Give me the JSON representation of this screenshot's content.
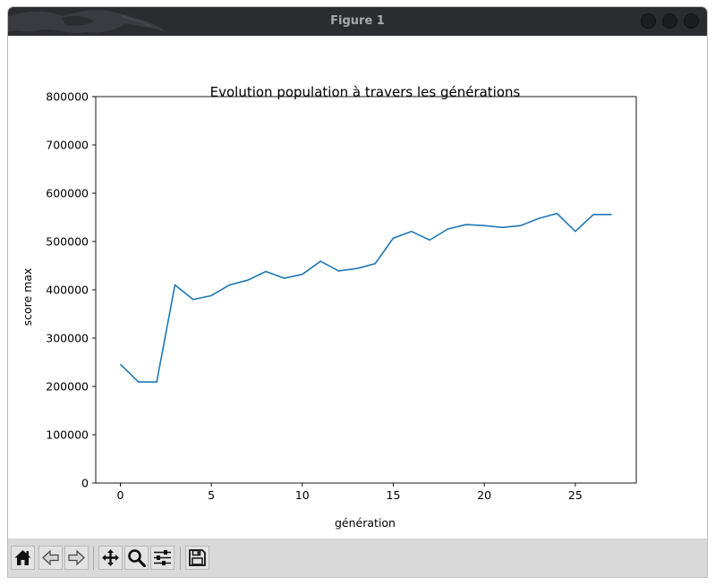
{
  "window": {
    "title": "Figure 1"
  },
  "toolbar": {
    "buttons": [
      {
        "name": "home-button",
        "icon": "home-icon"
      },
      {
        "name": "back-button",
        "icon": "back-arrow-icon"
      },
      {
        "name": "forward-button",
        "icon": "forward-arrow-icon"
      },
      {
        "name": "pan-button",
        "icon": "move-icon"
      },
      {
        "name": "zoom-button",
        "icon": "zoom-icon"
      },
      {
        "name": "configure-subplots-button",
        "icon": "sliders-icon"
      },
      {
        "name": "save-button",
        "icon": "floppy-disk-icon"
      }
    ]
  },
  "chart_data": {
    "type": "line",
    "title": "Evolution population à travers les générations",
    "xlabel": "génération",
    "ylabel": "score max",
    "xlim": [
      -1.35,
      28.35
    ],
    "ylim": [
      0,
      800000
    ],
    "xticks": [
      0,
      5,
      10,
      15,
      20,
      25
    ],
    "yticks": [
      0,
      100000,
      200000,
      300000,
      400000,
      500000,
      600000,
      700000,
      800000
    ],
    "grid": false,
    "line_color": "#1f77b4",
    "series": [
      {
        "x": [
          0,
          1,
          2,
          3,
          4,
          5,
          6,
          7,
          8,
          9,
          10,
          11,
          12,
          13,
          14,
          15,
          16,
          17,
          18,
          19,
          20,
          21,
          22,
          23,
          24,
          25,
          26,
          27
        ],
        "y": [
          246000,
          209000,
          209000,
          410000,
          380000,
          388000,
          410000,
          420000,
          438000,
          424000,
          432000,
          459000,
          439000,
          444000,
          454000,
          507000,
          521000,
          503000,
          526000,
          535000,
          533000,
          529000,
          533000,
          548000,
          558000,
          521000,
          556000,
          556000
        ]
      }
    ]
  }
}
